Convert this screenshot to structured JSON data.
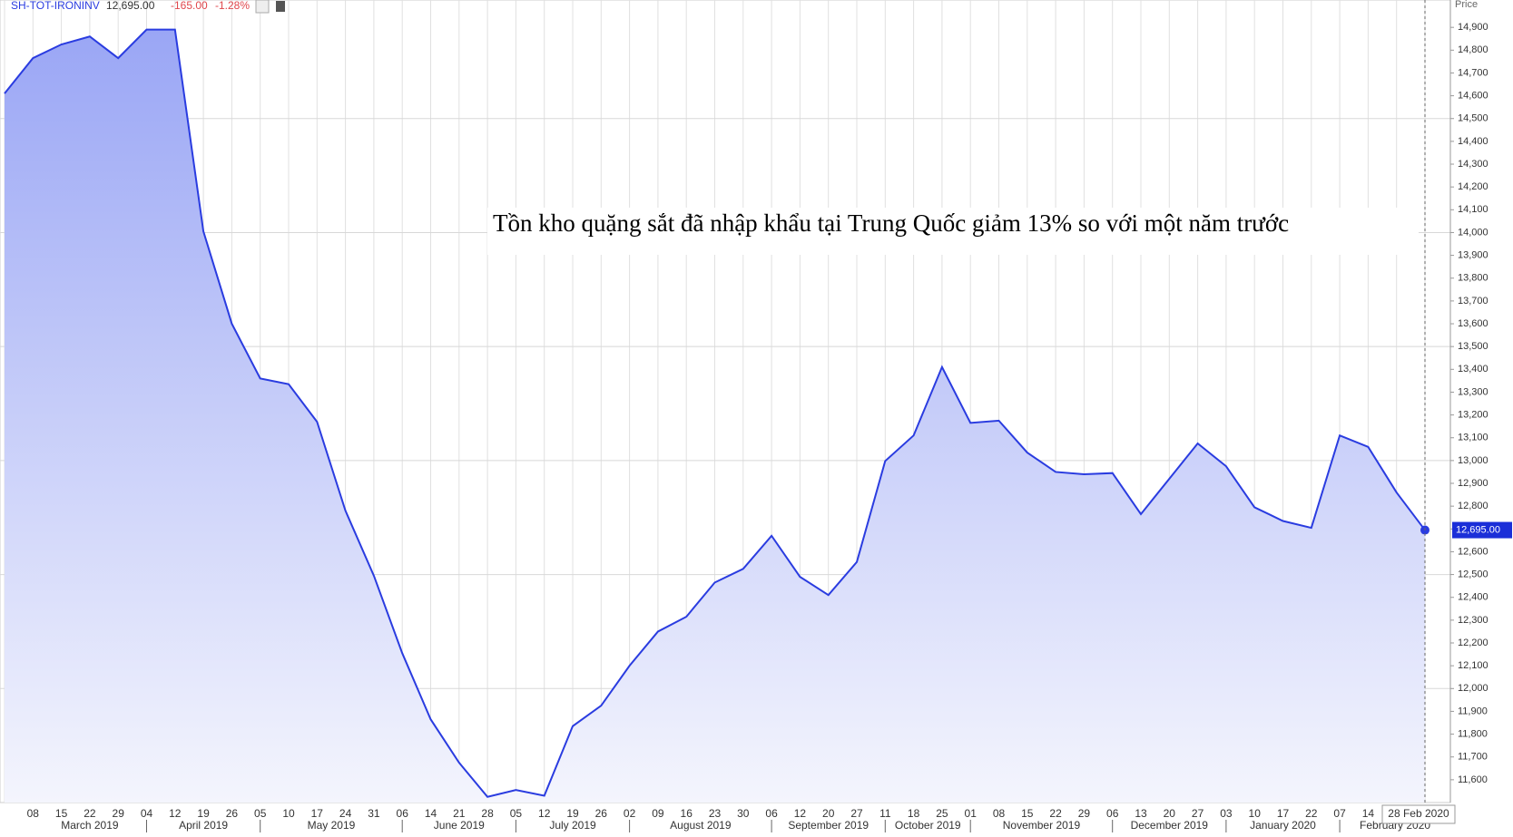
{
  "header": {
    "symbol": "SH-TOT-IRONINV",
    "last": "12,695.00",
    "change": "-165.00",
    "change_pct": "-1.28%"
  },
  "chart_data": {
    "type": "area",
    "annotation": "Tồn kho quặng sắt đã nhập khẩu tại Trung Quốc giảm 13% so với một năm trước",
    "y_label": "Price",
    "categories": [
      null,
      "08",
      "15",
      "22",
      "29",
      "04",
      "12",
      "19",
      "26",
      "05",
      "10",
      "17",
      "24",
      "31",
      "06",
      "14",
      "21",
      "28",
      "05",
      "12",
      "19",
      "26",
      "02",
      "09",
      "16",
      "23",
      "30",
      "06",
      "12",
      "20",
      "27",
      "11",
      "18",
      "25",
      "01",
      "08",
      "15",
      "22",
      "29",
      "06",
      "13",
      "20",
      "27",
      "03",
      "10",
      "17",
      "22",
      "07",
      "14",
      null,
      "28 Feb 2020"
    ],
    "months": [
      "March 2019",
      "April 2019",
      "May 2019",
      "June 2019",
      "July 2019",
      "August 2019",
      "September 2019",
      "October 2019",
      "November 2019",
      "December 2019",
      "January 2020",
      "February 2020"
    ],
    "series": [
      {
        "name": "SH-TOT-IRONINV",
        "color": "#2a3ce0",
        "values": [
          14610,
          14765,
          14825,
          14860,
          14765,
          14890,
          14890,
          14005,
          13600,
          13360,
          13335,
          13170,
          12780,
          12495,
          12155,
          11865,
          11675,
          11525,
          11555,
          11530,
          11835,
          11925,
          12100,
          12250,
          12315,
          12465,
          12525,
          12670,
          12490,
          12410,
          12555,
          12998,
          13110,
          13410,
          13165,
          13175,
          13035,
          12950,
          12940,
          12945,
          12765,
          12920,
          13075,
          12975,
          12795,
          12735,
          12705,
          13110,
          13060,
          12860,
          12695
        ],
        "value_labels": [
          null,
          null,
          null,
          null,
          null,
          null,
          null,
          null,
          null,
          null,
          null,
          null,
          null,
          null,
          null,
          null,
          null,
          null,
          null,
          null,
          null,
          null,
          null,
          null,
          null,
          null,
          null,
          null,
          null,
          null,
          null,
          null,
          null,
          null,
          null,
          null,
          null,
          null,
          null,
          null,
          null,
          null,
          null,
          null,
          null,
          null,
          null,
          null,
          null,
          null,
          "12,695.00"
        ]
      }
    ],
    "ylim": [
      11500,
      15020
    ],
    "yticks": [
      {
        "value": 11600,
        "label": "11,600"
      },
      {
        "value": 11700,
        "label": "11,700"
      },
      {
        "value": 11800,
        "label": "11,800"
      },
      {
        "value": 11900,
        "label": "11,900"
      },
      {
        "value": 12000,
        "label": "12,000"
      },
      {
        "value": 12100,
        "label": "12,100"
      },
      {
        "value": 12200,
        "label": "12,200"
      },
      {
        "value": 12300,
        "label": "12,300"
      },
      {
        "value": 12400,
        "label": "12,400"
      },
      {
        "value": 12500,
        "label": "12,500"
      },
      {
        "value": 12600,
        "label": "12,600"
      },
      {
        "value": 12700,
        "label": "12,700"
      },
      {
        "value": 12800,
        "label": "12,800"
      },
      {
        "value": 12900,
        "label": "12,900"
      },
      {
        "value": 13000,
        "label": "13,000"
      },
      {
        "value": 13100,
        "label": "13,100"
      },
      {
        "value": 13200,
        "label": "13,200"
      },
      {
        "value": 13300,
        "label": "13,300"
      },
      {
        "value": 13400,
        "label": "13,400"
      },
      {
        "value": 13500,
        "label": "13,500"
      },
      {
        "value": 13600,
        "label": "13,600"
      },
      {
        "value": 13700,
        "label": "13,700"
      },
      {
        "value": 13800,
        "label": "13,800"
      },
      {
        "value": 13900,
        "label": "13,900"
      },
      {
        "value": 14000,
        "label": "14,000"
      },
      {
        "value": 14100,
        "label": "14,100"
      },
      {
        "value": 14200,
        "label": "14,200"
      },
      {
        "value": 14300,
        "label": "14,300"
      },
      {
        "value": 14400,
        "label": "14,400"
      },
      {
        "value": 14500,
        "label": "14,500"
      },
      {
        "value": 14600,
        "label": "14,600"
      },
      {
        "value": 14700,
        "label": "14,700"
      },
      {
        "value": 14800,
        "label": "14,800"
      },
      {
        "value": 14900,
        "label": "14,900"
      }
    ],
    "grid": true
  }
}
